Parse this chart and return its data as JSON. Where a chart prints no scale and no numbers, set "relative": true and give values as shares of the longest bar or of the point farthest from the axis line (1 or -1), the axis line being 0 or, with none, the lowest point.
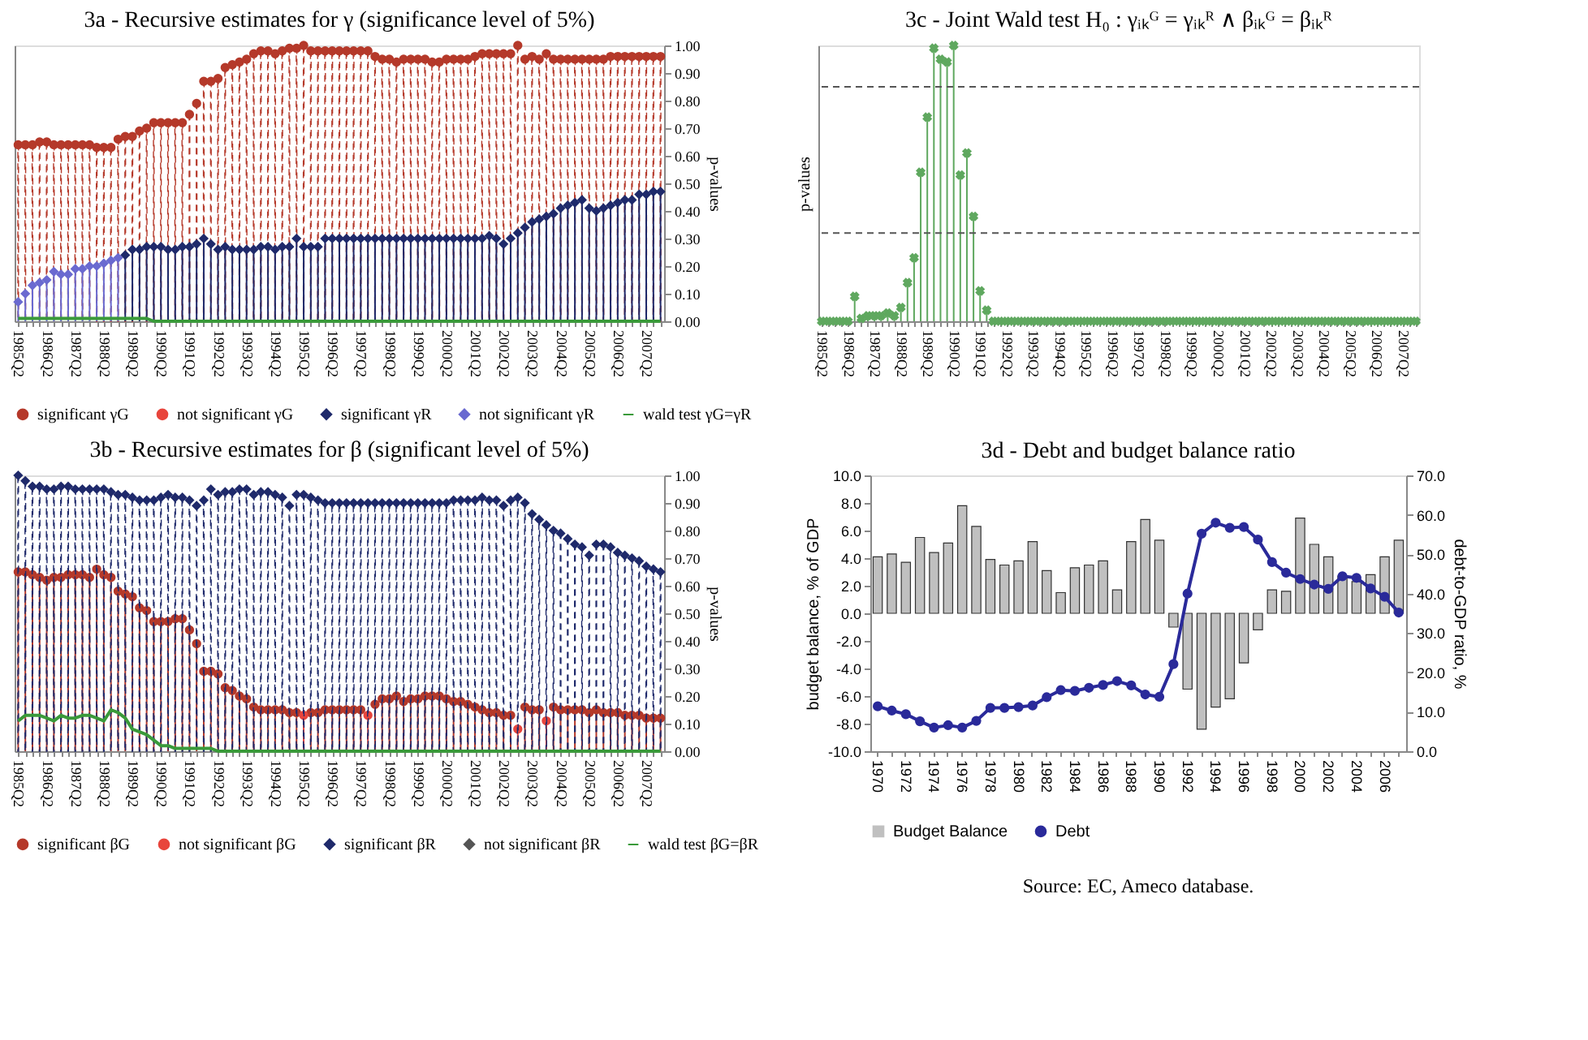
{
  "chart_data": [
    {
      "type": "lollipop",
      "title": "3a - Recursive estimates for γ (significance level of 5%)",
      "relative": true,
      "y2label": "p-values",
      "y2lim": [
        0,
        1
      ],
      "y2ticks": [
        {
          "value": 0,
          "label": "0.00"
        },
        {
          "value": 0.1,
          "label": "0.10"
        },
        {
          "value": 0.2,
          "label": "0.20"
        },
        {
          "value": 0.3,
          "label": "0.30"
        },
        {
          "value": 0.4,
          "label": "0.40"
        },
        {
          "value": 0.5,
          "label": "0.50"
        },
        {
          "value": 0.6,
          "label": "0.60"
        },
        {
          "value": 0.7,
          "label": "0.70"
        },
        {
          "value": 0.8,
          "label": "0.80"
        },
        {
          "value": 0.9,
          "label": "0.90"
        },
        {
          "value": 1,
          "label": "1.00"
        }
      ],
      "legend": "bottom",
      "categories": [
        "1985Q2",
        null,
        null,
        null,
        "1986Q2",
        null,
        null,
        null,
        "1987Q2",
        null,
        null,
        null,
        "1988Q2",
        null,
        null,
        null,
        "1989Q2",
        null,
        null,
        null,
        "1990Q2",
        null,
        null,
        null,
        "1991Q2",
        null,
        null,
        null,
        "1992Q2",
        null,
        null,
        null,
        "1993Q2",
        null,
        null,
        null,
        "1994Q2",
        null,
        null,
        null,
        "1995Q2",
        null,
        null,
        null,
        "1996Q2",
        null,
        null,
        null,
        "1997Q2",
        null,
        null,
        null,
        "1998Q2",
        null,
        null,
        null,
        "1999Q2",
        null,
        null,
        null,
        "2000Q2",
        null,
        null,
        null,
        "2001Q2",
        null,
        null,
        null,
        "2002Q2",
        null,
        null,
        null,
        "2003Q2",
        null,
        null,
        null,
        "2004Q2",
        null,
        null,
        null,
        "2005Q2",
        null,
        null,
        null,
        "2006Q2",
        null,
        null,
        null,
        "2007Q2",
        null,
        null
      ],
      "series": [
        {
          "name": "significant γG",
          "color": "#b5392a",
          "marker": "circle",
          "line_style": "dashed",
          "values": [
            0.64,
            0.64,
            0.64,
            0.65,
            0.65,
            0.64,
            0.64,
            0.64,
            0.64,
            0.64,
            0.64,
            0.63,
            0.63,
            0.63,
            0.66,
            0.67,
            0.67,
            0.69,
            0.7,
            0.72,
            0.72,
            0.72,
            0.72,
            0.72,
            0.75,
            0.79,
            0.87,
            0.87,
            0.88,
            0.92,
            0.93,
            0.94,
            0.95,
            0.97,
            0.98,
            0.98,
            0.97,
            0.98,
            0.99,
            0.99,
            1.0,
            0.98,
            0.98,
            0.98,
            0.98,
            0.98,
            0.98,
            0.98,
            0.98,
            0.98,
            0.96,
            0.95,
            0.95,
            0.94,
            0.95,
            0.95,
            0.95,
            0.95,
            0.94,
            0.94,
            0.95,
            0.95,
            0.95,
            0.95,
            0.96,
            0.97,
            0.97,
            0.97,
            0.97,
            0.97,
            1.0,
            0.95,
            0.96,
            0.95,
            0.97,
            0.95,
            0.95,
            0.95,
            0.95,
            0.95,
            0.95,
            0.95,
            0.95,
            0.96,
            0.96,
            0.96,
            0.96,
            0.96,
            0.96,
            0.96,
            0.96
          ]
        },
        {
          "name": "not significant γG",
          "color": "#e8453c",
          "marker": "circle",
          "line_style": "dashed",
          "values": [
            null,
            null,
            null,
            null,
            null,
            null,
            null,
            null,
            null,
            null,
            null,
            null,
            null,
            null,
            null,
            null,
            null,
            null,
            null,
            null,
            null,
            null,
            null,
            null,
            null,
            null,
            null,
            null,
            null,
            null,
            null,
            null,
            null,
            null,
            null,
            null,
            null,
            null,
            null,
            null,
            null,
            null,
            null,
            null,
            null,
            null,
            null,
            null,
            null,
            null,
            null,
            null,
            null,
            null,
            null,
            null,
            null,
            null,
            null,
            null,
            null,
            null,
            null,
            null,
            null,
            null,
            null,
            null,
            null,
            null,
            null,
            null,
            null,
            null,
            null,
            null,
            null,
            null,
            null,
            null,
            null,
            null,
            null,
            null,
            null,
            null,
            null,
            null,
            null,
            null,
            null
          ]
        },
        {
          "name": "significant γR",
          "color": "#1f2a6b",
          "marker": "diamond",
          "line_style": "solid",
          "values": [
            null,
            null,
            null,
            null,
            null,
            null,
            null,
            null,
            null,
            null,
            null,
            null,
            null,
            null,
            null,
            0.24,
            0.26,
            0.26,
            0.27,
            0.27,
            0.27,
            0.26,
            0.26,
            0.27,
            0.27,
            0.28,
            0.3,
            0.28,
            0.26,
            0.27,
            0.26,
            0.26,
            0.26,
            0.26,
            0.27,
            0.27,
            0.26,
            0.27,
            0.27,
            0.3,
            0.27,
            0.27,
            0.27,
            0.3,
            0.3,
            0.3,
            0.3,
            0.3,
            0.3,
            0.3,
            0.3,
            0.3,
            0.3,
            0.3,
            0.3,
            0.3,
            0.3,
            0.3,
            0.3,
            0.3,
            0.3,
            0.3,
            0.3,
            0.3,
            0.3,
            0.3,
            0.31,
            0.3,
            0.28,
            0.3,
            0.32,
            0.34,
            0.36,
            0.37,
            0.38,
            0.39,
            0.41,
            0.42,
            0.43,
            0.44,
            0.41,
            0.4,
            0.41,
            0.42,
            0.43,
            0.44,
            0.44,
            0.46,
            0.46,
            0.47,
            0.47
          ]
        },
        {
          "name": "not significant γR",
          "color": "#6a6ad0",
          "marker": "diamond",
          "line_style": "solid",
          "values": [
            0.07,
            0.1,
            0.13,
            0.14,
            0.15,
            0.18,
            0.17,
            0.17,
            0.19,
            0.19,
            0.2,
            0.2,
            0.21,
            0.22,
            0.23,
            null,
            null,
            null,
            null,
            null,
            null,
            null,
            null,
            null,
            null,
            null,
            null,
            null,
            null,
            null,
            null,
            null,
            null,
            null,
            null,
            null,
            null,
            null,
            null,
            null,
            null,
            null,
            null,
            null,
            null,
            null,
            null,
            null,
            null,
            null,
            null,
            null,
            null,
            null,
            null,
            null,
            null,
            null,
            null,
            null,
            null,
            null,
            null,
            null,
            null,
            null,
            null,
            null,
            null,
            null,
            null,
            null,
            null,
            null,
            null,
            null,
            null,
            null,
            null,
            null,
            null,
            null,
            null,
            null,
            null,
            null,
            null,
            null,
            null,
            null,
            null
          ]
        },
        {
          "name": "wald test γG=γR",
          "type": "line",
          "axis": "y2",
          "color": "#3a9a3a",
          "values": [
            0.01,
            0.01,
            0.01,
            0.01,
            0.01,
            0.01,
            0.01,
            0.01,
            0.01,
            0.01,
            0.01,
            0.01,
            0.01,
            0.01,
            0.01,
            0.01,
            0.01,
            0.01,
            0.01,
            0,
            0,
            0,
            0,
            0,
            0,
            0,
            0,
            0,
            0,
            0,
            0,
            0,
            0,
            0,
            0,
            0,
            0,
            0,
            0,
            0,
            0,
            0,
            0,
            0,
            0,
            0,
            0,
            0,
            0,
            0,
            0,
            0,
            0,
            0,
            0,
            0,
            0,
            0,
            0,
            0,
            0,
            0,
            0,
            0,
            0,
            0,
            0,
            0,
            0,
            0,
            0,
            0,
            0,
            0,
            0,
            0,
            0,
            0,
            0,
            0,
            0,
            0,
            0,
            0,
            0,
            0,
            0,
            0,
            0,
            0,
            0
          ]
        }
      ]
    },
    {
      "type": "lollipop",
      "title": "3c - Joint Wald test  H₀ : γᵢₖᴳ = γᵢₖᴿ ∧ βᵢₖᴳ = βᵢₖᴿ",
      "ylabel": "p-values",
      "relative": true,
      "ref_lines": [
        {
          "axis": "y",
          "value": 0.32,
          "color": "#555555",
          "line_style": "dashed"
        },
        {
          "axis": "y",
          "value": 0.85,
          "color": "#555555",
          "line_style": "dashed"
        }
      ],
      "categories": [
        "1985Q2",
        null,
        null,
        null,
        "1986Q2",
        null,
        null,
        null,
        "1987Q2",
        null,
        null,
        null,
        "1988Q2",
        null,
        null,
        null,
        "1989Q2",
        null,
        null,
        null,
        "1990Q2",
        null,
        null,
        null,
        "1991Q2",
        null,
        null,
        null,
        "1992Q2",
        null,
        null,
        null,
        "1993Q2",
        null,
        null,
        null,
        "1994Q2",
        null,
        null,
        null,
        "1995Q2",
        null,
        null,
        null,
        "1996Q2",
        null,
        null,
        null,
        "1997Q2",
        null,
        null,
        null,
        "1998Q2",
        null,
        null,
        null,
        "1999Q2",
        null,
        null,
        null,
        "2000Q2",
        null,
        null,
        null,
        "2001Q2",
        null,
        null,
        null,
        "2002Q2",
        null,
        null,
        null,
        "2003Q2",
        null,
        null,
        null,
        "2004Q2",
        null,
        null,
        null,
        "2005Q2",
        null,
        null,
        null,
        "2006Q2",
        null,
        null,
        null,
        "2007Q2",
        null,
        null
      ],
      "series": [
        {
          "color": "#5fa85f",
          "marker": "cross",
          "line_style": "solid",
          "values": [
            0,
            0,
            0,
            0,
            0,
            0.09,
            0.01,
            0.02,
            0.02,
            0.02,
            0.03,
            0.02,
            0.05,
            0.14,
            0.23,
            0.54,
            0.74,
            0.99,
            0.95,
            0.94,
            1.0,
            0.53,
            0.61,
            0.38,
            0.11,
            0.04,
            0,
            0,
            0,
            0,
            0,
            0,
            0,
            0,
            0,
            0,
            0,
            0,
            0,
            0,
            0,
            0,
            0,
            0,
            0,
            0,
            0,
            0,
            0,
            0,
            0,
            0,
            0,
            0,
            0,
            0,
            0,
            0,
            0,
            0,
            0,
            0,
            0,
            0,
            0,
            0,
            0,
            0,
            0,
            0,
            0,
            0,
            0,
            0,
            0,
            0,
            0,
            0,
            0,
            0,
            0,
            0,
            0,
            0,
            0,
            0,
            0,
            0,
            0,
            0,
            0
          ]
        }
      ]
    },
    {
      "type": "lollipop",
      "title": "3b - Recursive estimates for β (significant level of 5%)",
      "relative": true,
      "y2label": "p-values",
      "y2lim": [
        0,
        1
      ],
      "y2ticks": [
        {
          "value": 0,
          "label": "0.00"
        },
        {
          "value": 0.1,
          "label": "0.10"
        },
        {
          "value": 0.2,
          "label": "0.20"
        },
        {
          "value": 0.3,
          "label": "0.30"
        },
        {
          "value": 0.4,
          "label": "0.40"
        },
        {
          "value": 0.5,
          "label": "0.50"
        },
        {
          "value": 0.6,
          "label": "0.60"
        },
        {
          "value": 0.7,
          "label": "0.70"
        },
        {
          "value": 0.8,
          "label": "0.80"
        },
        {
          "value": 0.9,
          "label": "0.90"
        },
        {
          "value": 1,
          "label": "1.00"
        }
      ],
      "legend": "bottom",
      "categories": [
        "1985Q2",
        null,
        null,
        null,
        "1986Q2",
        null,
        null,
        null,
        "1987Q2",
        null,
        null,
        null,
        "1988Q2",
        null,
        null,
        null,
        "1989Q2",
        null,
        null,
        null,
        "1990Q2",
        null,
        null,
        null,
        "1991Q2",
        null,
        null,
        null,
        "1992Q2",
        null,
        null,
        null,
        "1993Q2",
        null,
        null,
        null,
        "1994Q2",
        null,
        null,
        null,
        "1995Q2",
        null,
        null,
        null,
        "1996Q2",
        null,
        null,
        null,
        "1997Q2",
        null,
        null,
        null,
        "1998Q2",
        null,
        null,
        null,
        "1999Q2",
        null,
        null,
        null,
        "2000Q2",
        null,
        null,
        null,
        "2001Q2",
        null,
        null,
        null,
        "2002Q2",
        null,
        null,
        null,
        "2003Q2",
        null,
        null,
        null,
        "2004Q2",
        null,
        null,
        null,
        "2005Q2",
        null,
        null,
        null,
        "2006Q2",
        null,
        null,
        null,
        "2007Q2",
        null,
        null
      ],
      "series": [
        {
          "name": "significant βG",
          "color": "#b5392a",
          "marker": "circle",
          "line_style": "solid",
          "values": [
            0.65,
            0.65,
            0.64,
            0.63,
            0.62,
            0.63,
            0.63,
            0.64,
            0.64,
            0.64,
            0.63,
            0.66,
            0.64,
            0.63,
            0.58,
            0.57,
            0.56,
            0.52,
            0.51,
            0.47,
            0.47,
            0.47,
            0.48,
            0.48,
            0.44,
            0.39,
            0.29,
            0.29,
            0.28,
            0.23,
            0.22,
            0.2,
            0.19,
            0.16,
            0.15,
            0.15,
            0.15,
            0.15,
            0.14,
            0.14,
            null,
            0.14,
            0.14,
            0.15,
            0.15,
            0.15,
            0.15,
            0.15,
            0.15,
            null,
            0.17,
            0.19,
            0.19,
            0.2,
            0.18,
            0.19,
            0.19,
            0.2,
            0.2,
            0.2,
            0.19,
            0.18,
            0.18,
            0.17,
            0.16,
            0.15,
            0.14,
            0.14,
            0.13,
            0.13,
            null,
            0.16,
            0.15,
            0.15,
            null,
            0.16,
            0.15,
            0.15,
            0.15,
            0.15,
            0.14,
            0.15,
            0.14,
            0.14,
            0.14,
            0.13,
            0.13,
            0.13,
            0.12,
            0.12,
            0.12
          ]
        },
        {
          "name": "not significant βG",
          "color": "#e8453c",
          "marker": "circle",
          "line_style": "solid",
          "values": [
            null,
            null,
            null,
            null,
            null,
            null,
            null,
            null,
            null,
            null,
            null,
            null,
            null,
            null,
            null,
            null,
            null,
            null,
            null,
            null,
            null,
            null,
            null,
            null,
            null,
            null,
            null,
            null,
            null,
            null,
            null,
            null,
            null,
            null,
            null,
            null,
            null,
            null,
            null,
            null,
            0.13,
            null,
            null,
            null,
            null,
            null,
            null,
            null,
            null,
            0.13,
            null,
            null,
            null,
            null,
            null,
            null,
            null,
            null,
            null,
            null,
            null,
            null,
            null,
            null,
            null,
            null,
            null,
            null,
            null,
            null,
            0.08,
            null,
            null,
            null,
            0.11,
            null,
            null,
            null,
            null,
            null,
            null,
            null,
            null,
            null,
            null,
            null,
            null,
            null,
            null,
            null,
            null
          ]
        },
        {
          "name": "significant βR",
          "color": "#1f2a6b",
          "marker": "diamond",
          "line_style": "dashed",
          "values": [
            1.0,
            0.98,
            0.96,
            0.96,
            0.95,
            0.95,
            0.96,
            0.96,
            0.95,
            0.95,
            0.95,
            0.95,
            0.95,
            0.94,
            0.93,
            0.93,
            0.92,
            0.91,
            0.91,
            0.91,
            0.92,
            0.93,
            0.92,
            0.92,
            0.91,
            0.89,
            0.91,
            0.95,
            0.93,
            0.94,
            0.94,
            0.95,
            0.95,
            0.93,
            0.94,
            0.94,
            0.93,
            0.92,
            0.89,
            0.93,
            0.93,
            0.92,
            0.91,
            0.9,
            0.9,
            0.9,
            0.9,
            0.9,
            0.9,
            0.9,
            0.9,
            0.9,
            0.9,
            0.9,
            0.9,
            0.9,
            0.9,
            0.9,
            0.9,
            0.9,
            0.9,
            0.91,
            0.91,
            0.91,
            0.91,
            0.92,
            0.91,
            0.91,
            0.89,
            0.91,
            0.92,
            0.9,
            0.86,
            0.84,
            0.82,
            0.8,
            0.79,
            0.77,
            0.75,
            0.74,
            0.71,
            0.75,
            0.75,
            0.74,
            0.72,
            0.71,
            0.7,
            0.69,
            0.67,
            0.66,
            0.65
          ]
        },
        {
          "name": "not significant βR",
          "color": "#555555",
          "marker": "diamond",
          "line_style": "dashed",
          "values": [
            null,
            null,
            null,
            null,
            null,
            null,
            null,
            null,
            null,
            null,
            null,
            null,
            null,
            null,
            null,
            null,
            null,
            null,
            null,
            null,
            null,
            null,
            null,
            null,
            null,
            null,
            null,
            null,
            null,
            null,
            null,
            null,
            null,
            null,
            null,
            null,
            null,
            null,
            null,
            null,
            null,
            null,
            null,
            null,
            null,
            null,
            null,
            null,
            null,
            null,
            null,
            null,
            null,
            null,
            null,
            null,
            null,
            null,
            null,
            null,
            null,
            null,
            null,
            null,
            null,
            null,
            null,
            null,
            null,
            null,
            null,
            null,
            null,
            null,
            null,
            null,
            null,
            null,
            null,
            null,
            null,
            null,
            null,
            null,
            null,
            null,
            null,
            null,
            null,
            null,
            null
          ]
        },
        {
          "name": "wald test βG=βR",
          "type": "line",
          "axis": "y2",
          "color": "#3a9a3a",
          "values": [
            0.11,
            0.13,
            0.13,
            0.13,
            0.12,
            0.11,
            0.13,
            0.12,
            0.12,
            0.13,
            0.13,
            0.12,
            0.11,
            0.15,
            0.14,
            0.12,
            0.08,
            0.07,
            0.06,
            0.04,
            0.02,
            0.02,
            0.01,
            0.01,
            0.01,
            0.01,
            0.01,
            0.01,
            0,
            0,
            0,
            0,
            0,
            0,
            0,
            0,
            0,
            0,
            0,
            0,
            0,
            0,
            0,
            0,
            0,
            0,
            0,
            0,
            0,
            0,
            0,
            0,
            0,
            0,
            0,
            0,
            0,
            0,
            0,
            0,
            0,
            0,
            0,
            0,
            0,
            0,
            0,
            0,
            0,
            0,
            0,
            0,
            0,
            0,
            0,
            0,
            0,
            0,
            0,
            0,
            0,
            0,
            0,
            0,
            0,
            0,
            0,
            0,
            0,
            0,
            0
          ]
        }
      ]
    },
    {
      "type": "bar",
      "title": "3d - Debt and budget balance ratio",
      "ylabel": "budget balance, % of GDP",
      "y2label": "debt-to-GDP ratio, %",
      "ylim": [
        -10,
        10
      ],
      "yticks": [
        {
          "value": -10,
          "label": "-10.0"
        },
        {
          "value": -8,
          "label": "-8.0"
        },
        {
          "value": -6,
          "label": "-6.0"
        },
        {
          "value": -4,
          "label": "-4.0"
        },
        {
          "value": -2,
          "label": "-2.0"
        },
        {
          "value": 0,
          "label": "0.0"
        },
        {
          "value": 2,
          "label": "2.0"
        },
        {
          "value": 4,
          "label": "4.0"
        },
        {
          "value": 6,
          "label": "6.0"
        },
        {
          "value": 8,
          "label": "8.0"
        },
        {
          "value": 10,
          "label": "10.0"
        }
      ],
      "y2lim": [
        0,
        70
      ],
      "y2ticks": [
        {
          "value": 0,
          "label": "0.0"
        },
        {
          "value": 10,
          "label": "10.0"
        },
        {
          "value": 20,
          "label": "20.0"
        },
        {
          "value": 30,
          "label": "30.0"
        },
        {
          "value": 40,
          "label": "40.0"
        },
        {
          "value": 50,
          "label": "50.0"
        },
        {
          "value": 60,
          "label": "60.0"
        },
        {
          "value": 70,
          "label": "70.0"
        }
      ],
      "legend": "bottom",
      "categories": [
        "1970",
        null,
        "1972",
        null,
        "1974",
        null,
        "1976",
        null,
        "1978",
        null,
        "1980",
        null,
        "1982",
        null,
        "1984",
        null,
        "1986",
        null,
        "1988",
        null,
        "1990",
        null,
        "1992",
        null,
        "1994",
        null,
        "1996",
        null,
        "1998",
        null,
        "2000",
        null,
        "2002",
        null,
        "2004",
        null,
        "2006",
        null
      ],
      "series": [
        {
          "name": "Budget Balance",
          "type": "bar",
          "color": "#c0c0c0",
          "values": [
            4.1,
            4.3,
            3.7,
            5.5,
            4.4,
            5.1,
            7.8,
            6.3,
            3.9,
            3.5,
            3.8,
            5.2,
            3.1,
            1.5,
            3.3,
            3.5,
            3.8,
            1.7,
            5.2,
            6.8,
            5.3,
            -1.0,
            -5.5,
            -8.4,
            -6.8,
            -6.2,
            -3.6,
            -1.2,
            1.7,
            1.6,
            6.9,
            5.0,
            4.1,
            2.7,
            2.3,
            2.8,
            4.1,
            5.3
          ]
        },
        {
          "name": "Debt",
          "type": "line",
          "axis": "y2",
          "color": "#2a2a9a",
          "marker": "circle",
          "values": [
            11.4,
            10.3,
            9.4,
            7.6,
            6.0,
            6.6,
            6.0,
            7.7,
            11.0,
            11.0,
            11.2,
            11.6,
            13.7,
            15.5,
            15.3,
            16.1,
            16.8,
            17.8,
            16.7,
            14.4,
            13.8,
            22.1,
            40.0,
            55.2,
            58.0,
            56.7,
            56.9,
            53.7,
            48.0,
            45.3,
            43.7,
            42.3,
            41.2,
            44.4,
            44.0,
            41.3,
            39.2,
            35.2
          ]
        }
      ],
      "annotations": [
        "Source: EC, Ameco database."
      ]
    }
  ]
}
